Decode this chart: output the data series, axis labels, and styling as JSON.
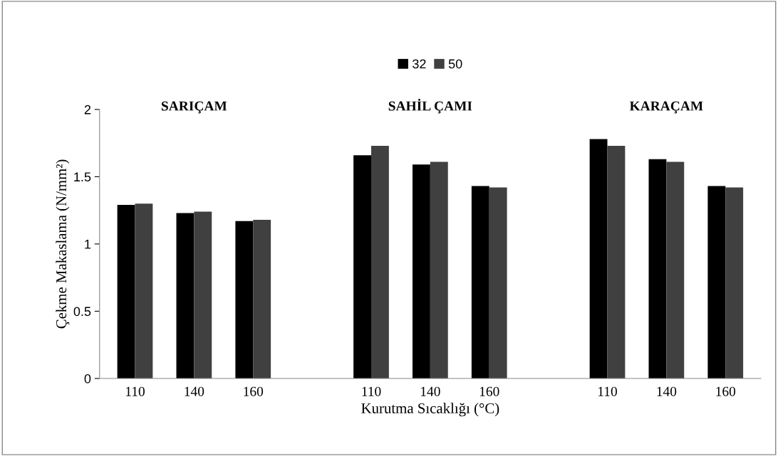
{
  "chart_data": {
    "type": "bar",
    "xlabel": "Kurutma Sıcaklığı (°C)",
    "ylabel": "Çekme Makaslama (N/mm²)",
    "categories": [
      "110",
      "140",
      "160",
      null,
      "110",
      "140",
      "160",
      null,
      "110",
      "140",
      "160"
    ],
    "series": [
      {
        "name": "32",
        "color": "#000000",
        "values": [
          1.29,
          1.23,
          1.17,
          null,
          1.66,
          1.59,
          1.43,
          null,
          1.78,
          1.63,
          1.43
        ]
      },
      {
        "name": "50",
        "color": "#404040",
        "values": [
          1.3,
          1.24,
          1.18,
          null,
          1.73,
          1.61,
          1.42,
          null,
          1.73,
          1.61,
          1.42
        ]
      }
    ],
    "annotations": [
      "SARIÇAM",
      "SAHİL ÇAMI",
      "KARAÇAM"
    ],
    "ylim": [
      0,
      2
    ],
    "yticks": [
      0,
      0.5,
      1,
      1.5,
      2
    ],
    "grid": false,
    "legend": "top"
  }
}
